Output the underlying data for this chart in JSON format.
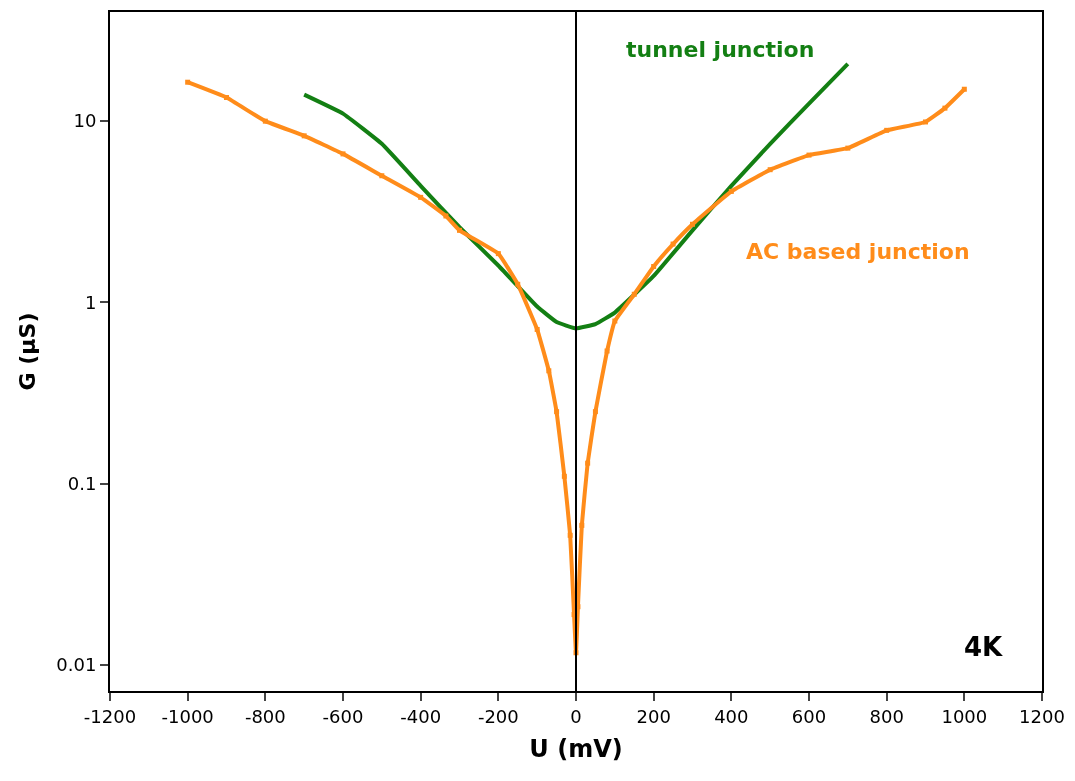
{
  "chart_data": {
    "type": "line",
    "xlabel": "U (mV)",
    "ylabel": "G (µS)",
    "log": "y",
    "legend": false,
    "xlim": [
      -1200,
      1200
    ],
    "xticks": [
      -1200,
      -1000,
      -800,
      -600,
      -400,
      -200,
      0,
      200,
      400,
      600,
      800,
      1000,
      1200
    ],
    "ylim": [
      0.0072,
      40
    ],
    "yticks": [
      0.01,
      0.1,
      1,
      10
    ],
    "annotations": [
      "4K"
    ],
    "ref_lines": [
      {
        "axis": "x",
        "value": 0,
        "color": "#000000"
      }
    ],
    "series": [
      {
        "name": "tunnel junction",
        "color": "#137f13",
        "line_style": "solid",
        "marker": "none",
        "x": [
          -700,
          -600,
          -500,
          -400,
          -300,
          -200,
          -100,
          -50,
          0,
          50,
          100,
          200,
          300,
          400,
          500,
          600,
          700
        ],
        "values": [
          14,
          11,
          7.5,
          4.4,
          2.6,
          1.6,
          0.95,
          0.78,
          0.72,
          0.76,
          0.88,
          1.4,
          2.5,
          4.4,
          7.5,
          12.5,
          20.7
        ]
      },
      {
        "name": "AC based junction",
        "color": "#ff8c1a",
        "line_style": "solid",
        "marker": "square",
        "x": [
          -1000,
          -900,
          -800,
          -700,
          -600,
          -500,
          -400,
          -335,
          -300,
          -200,
          -150,
          -100,
          -70,
          -50,
          -30,
          -15,
          -5,
          0,
          5,
          15,
          30,
          50,
          80,
          100,
          150,
          200,
          250,
          300,
          400,
          500,
          600,
          700,
          800,
          900,
          950,
          1000
        ],
        "values": [
          16.4,
          13.5,
          10,
          8.3,
          6.6,
          5.0,
          3.8,
          3.0,
          2.5,
          1.86,
          1.26,
          0.71,
          0.42,
          0.25,
          0.11,
          0.052,
          0.019,
          0.0117,
          0.021,
          0.059,
          0.13,
          0.25,
          0.54,
          0.79,
          1.11,
          1.58,
          2.1,
          2.7,
          4.1,
          5.4,
          6.5,
          7.1,
          8.9,
          9.9,
          11.8,
          15
        ]
      }
    ]
  }
}
